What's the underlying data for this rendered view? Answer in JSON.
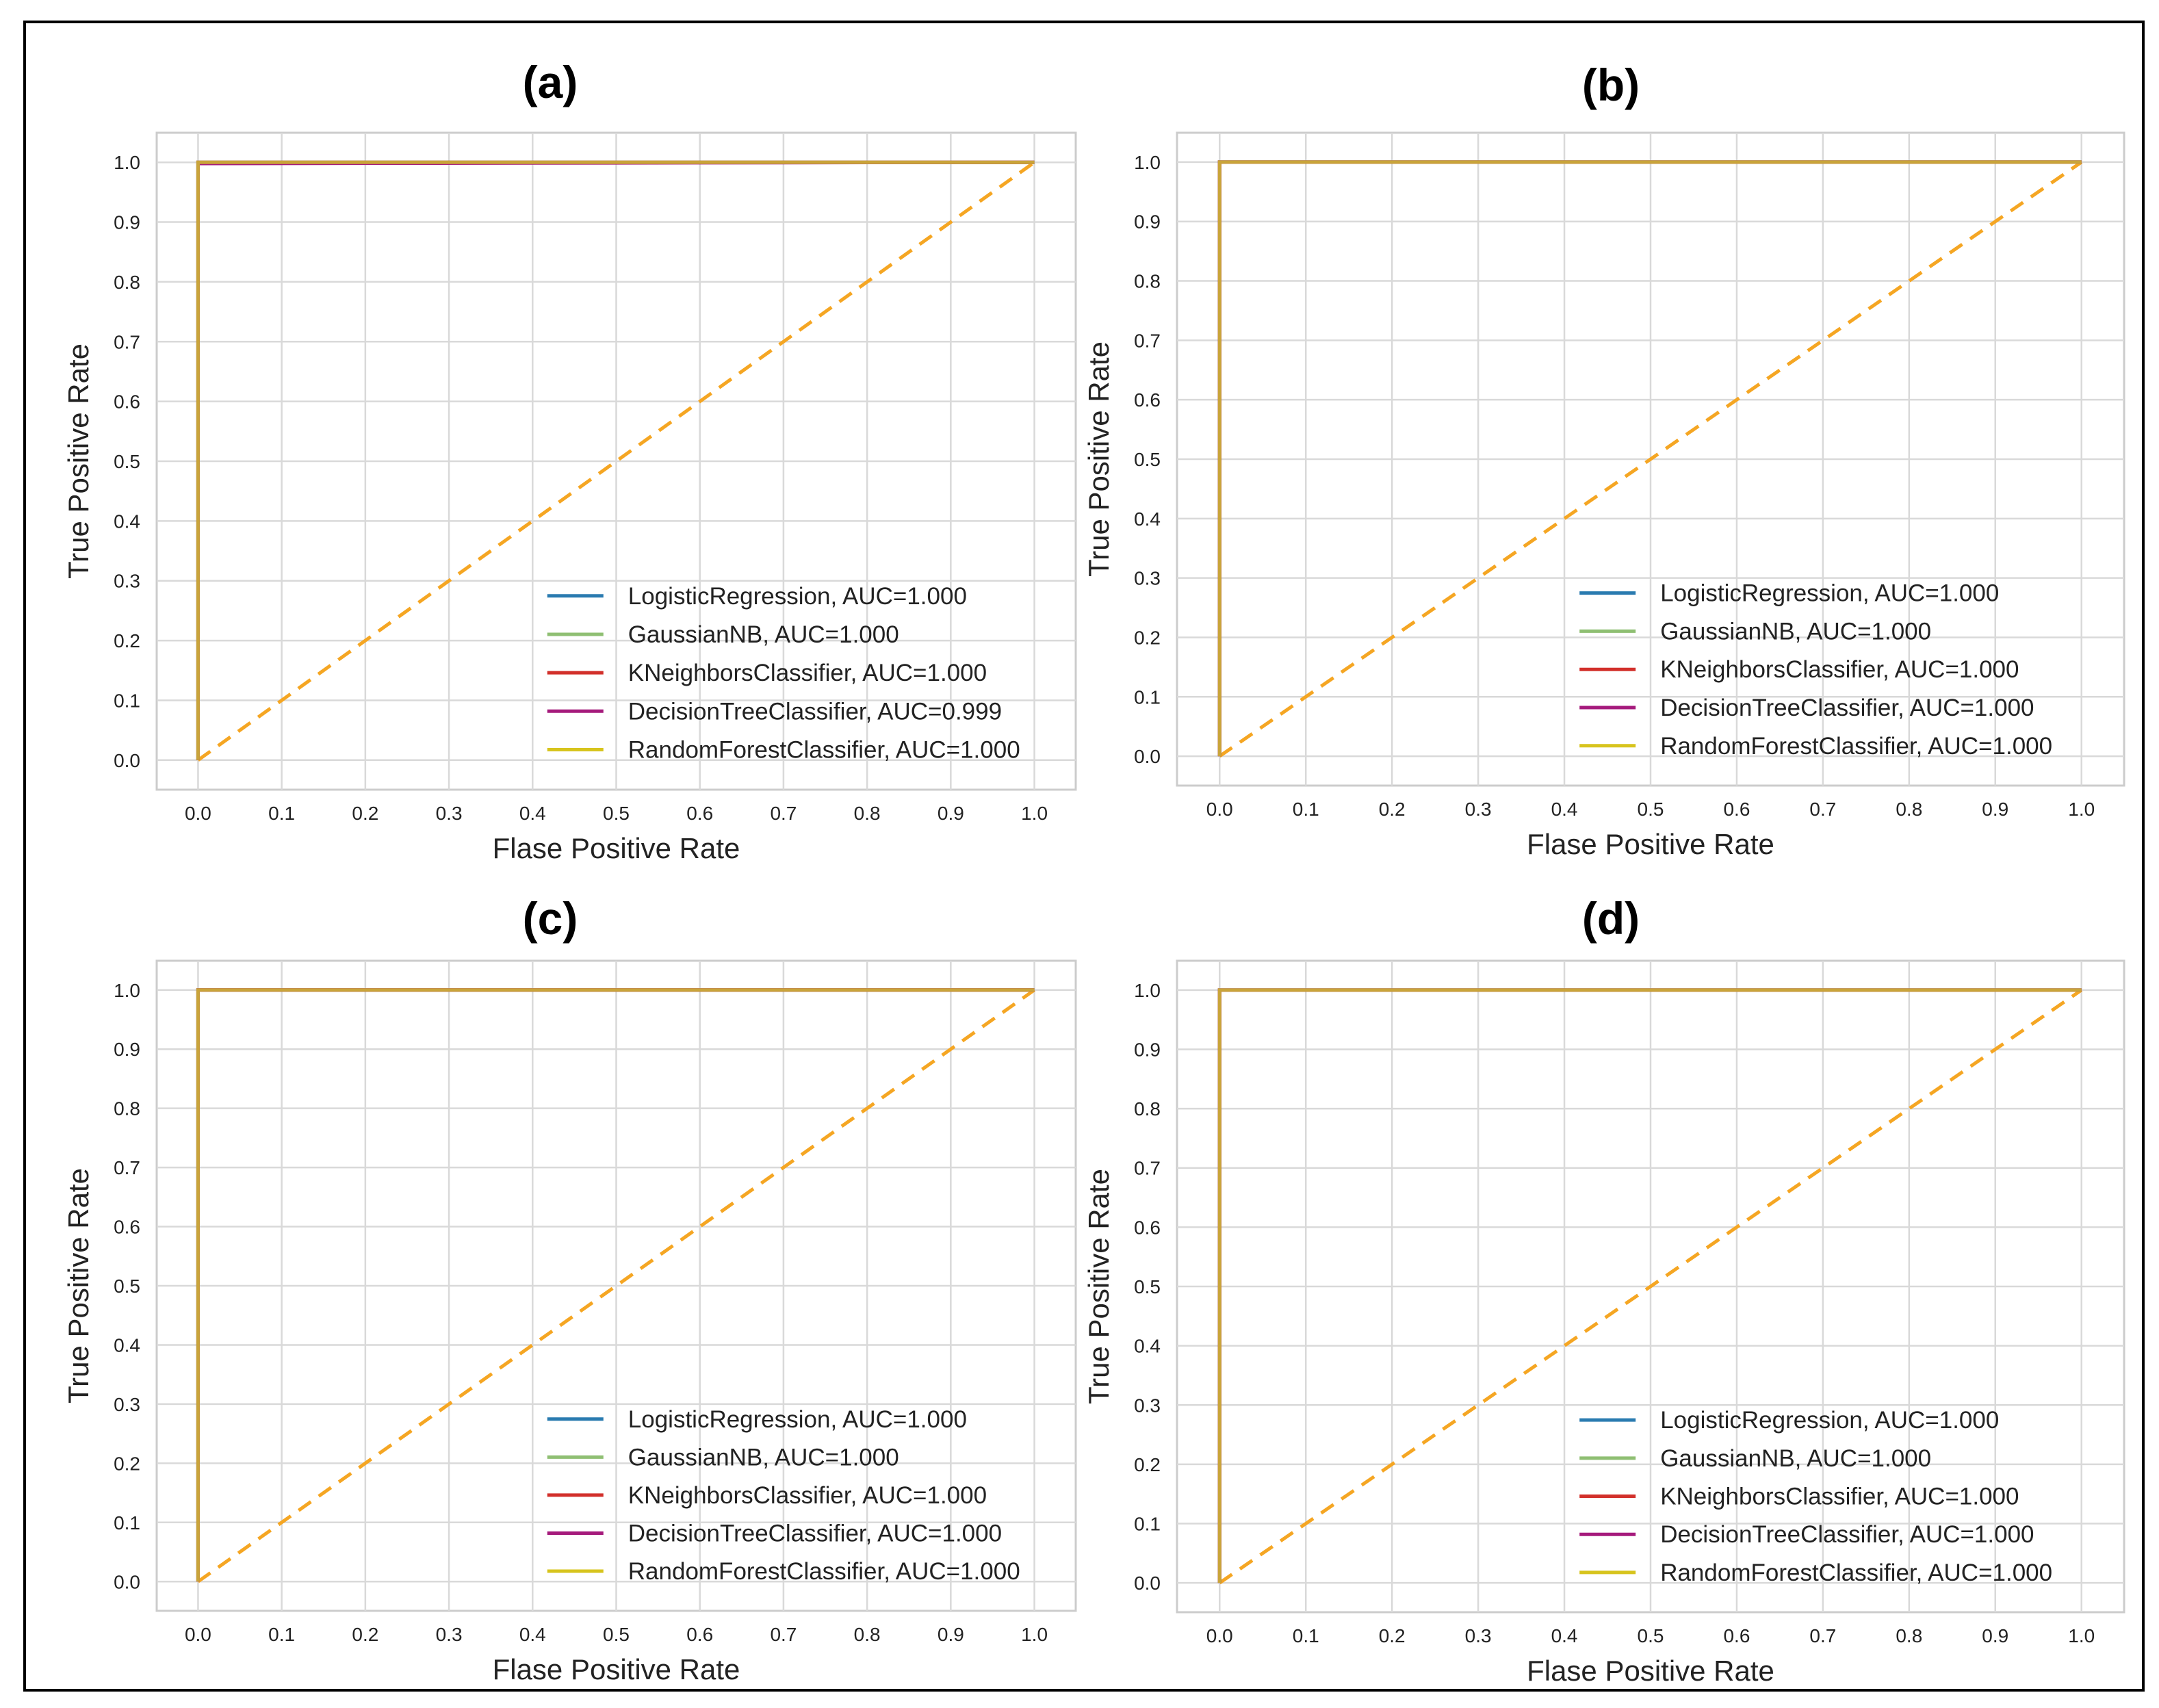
{
  "chart_data": [
    {
      "type": "line",
      "panel_label": "(a)",
      "title": "",
      "xlabel": "Flase Positive Rate",
      "ylabel": "True Positive Rate",
      "xlim": [
        0.0,
        1.0
      ],
      "ylim": [
        0.0,
        1.0
      ],
      "xticks": [
        "0.0",
        "0.1",
        "0.2",
        "0.3",
        "0.4",
        "0.5",
        "0.6",
        "0.7",
        "0.8",
        "0.9",
        "1.0"
      ],
      "yticks": [
        "0.0",
        "0.1",
        "0.2",
        "0.3",
        "0.4",
        "0.5",
        "0.6",
        "0.7",
        "0.8",
        "0.9",
        "1.0"
      ],
      "grid": true,
      "legend_position": "lower-right",
      "series": [
        {
          "name": "LogisticRegression, AUC=1.000",
          "color": "#2a7bb0",
          "x": [
            0,
            0,
            1
          ],
          "y": [
            0,
            1,
            1
          ]
        },
        {
          "name": "GaussianNB, AUC=1.000",
          "color": "#8fbf73",
          "x": [
            0,
            0,
            1
          ],
          "y": [
            0,
            1,
            1
          ]
        },
        {
          "name": "KNeighborsClassifier, AUC=1.000",
          "color": "#d2302b",
          "x": [
            0,
            0,
            1
          ],
          "y": [
            0,
            1,
            1
          ]
        },
        {
          "name": "DecisionTreeClassifier, AUC=0.999",
          "color": "#a51a7c",
          "x": [
            0,
            0,
            1
          ],
          "y": [
            0,
            0.998,
            1
          ]
        },
        {
          "name": "RandomForestClassifier, AUC=1.000",
          "color": "#d7c41d",
          "x": [
            0,
            0,
            1
          ],
          "y": [
            0,
            1,
            1
          ]
        }
      ],
      "top_curve_color": "#c9a43a",
      "reference_line": {
        "x": [
          0,
          1
        ],
        "y": [
          0,
          1
        ],
        "style": "dashed",
        "color": "#f5a623"
      }
    },
    {
      "type": "line",
      "panel_label": "(b)",
      "title": "",
      "xlabel": "Flase Positive Rate",
      "ylabel": "True Positive Rate",
      "xlim": [
        0.0,
        1.0
      ],
      "ylim": [
        0.0,
        1.0
      ],
      "xticks": [
        "0.0",
        "0.1",
        "0.2",
        "0.3",
        "0.4",
        "0.5",
        "0.6",
        "0.7",
        "0.8",
        "0.9",
        "1.0"
      ],
      "yticks": [
        "0.0",
        "0.1",
        "0.2",
        "0.3",
        "0.4",
        "0.5",
        "0.6",
        "0.7",
        "0.8",
        "0.9",
        "1.0"
      ],
      "grid": true,
      "legend_position": "lower-right",
      "series": [
        {
          "name": "LogisticRegression, AUC=1.000",
          "color": "#2a7bb0",
          "x": [
            0,
            0,
            1
          ],
          "y": [
            0,
            1,
            1
          ]
        },
        {
          "name": "GaussianNB, AUC=1.000",
          "color": "#8fbf73",
          "x": [
            0,
            0,
            1
          ],
          "y": [
            0,
            1,
            1
          ]
        },
        {
          "name": "KNeighborsClassifier, AUC=1.000",
          "color": "#d2302b",
          "x": [
            0,
            0,
            1
          ],
          "y": [
            0,
            1,
            1
          ]
        },
        {
          "name": "DecisionTreeClassifier, AUC=1.000",
          "color": "#a51a7c",
          "x": [
            0,
            0,
            1
          ],
          "y": [
            0,
            1,
            1
          ]
        },
        {
          "name": "RandomForestClassifier, AUC=1.000",
          "color": "#d7c41d",
          "x": [
            0,
            0,
            1
          ],
          "y": [
            0,
            1,
            1
          ]
        }
      ],
      "top_curve_color": "#c9a43a",
      "reference_line": {
        "x": [
          0,
          1
        ],
        "y": [
          0,
          1
        ],
        "style": "dashed",
        "color": "#f5a623"
      }
    },
    {
      "type": "line",
      "panel_label": "(c)",
      "title": "",
      "xlabel": "Flase Positive Rate",
      "ylabel": "True Positive Rate",
      "xlim": [
        0.0,
        1.0
      ],
      "ylim": [
        0.0,
        1.0
      ],
      "xticks": [
        "0.0",
        "0.1",
        "0.2",
        "0.3",
        "0.4",
        "0.5",
        "0.6",
        "0.7",
        "0.8",
        "0.9",
        "1.0"
      ],
      "yticks": [
        "0.0",
        "0.1",
        "0.2",
        "0.3",
        "0.4",
        "0.5",
        "0.6",
        "0.7",
        "0.8",
        "0.9",
        "1.0"
      ],
      "grid": true,
      "legend_position": "lower-right",
      "series": [
        {
          "name": "LogisticRegression, AUC=1.000",
          "color": "#2a7bb0",
          "x": [
            0,
            0,
            1
          ],
          "y": [
            0,
            1,
            1
          ]
        },
        {
          "name": "GaussianNB, AUC=1.000",
          "color": "#8fbf73",
          "x": [
            0,
            0,
            1
          ],
          "y": [
            0,
            1,
            1
          ]
        },
        {
          "name": "KNeighborsClassifier, AUC=1.000",
          "color": "#d2302b",
          "x": [
            0,
            0,
            1
          ],
          "y": [
            0,
            1,
            1
          ]
        },
        {
          "name": "DecisionTreeClassifier, AUC=1.000",
          "color": "#a51a7c",
          "x": [
            0,
            0,
            1
          ],
          "y": [
            0,
            1,
            1
          ]
        },
        {
          "name": "RandomForestClassifier, AUC=1.000",
          "color": "#d7c41d",
          "x": [
            0,
            0,
            1
          ],
          "y": [
            0,
            1,
            1
          ]
        }
      ],
      "top_curve_color": "#c9a43a",
      "reference_line": {
        "x": [
          0,
          1
        ],
        "y": [
          0,
          1
        ],
        "style": "dashed",
        "color": "#f5a623"
      }
    },
    {
      "type": "line",
      "panel_label": "(d)",
      "title": "",
      "xlabel": "Flase Positive Rate",
      "ylabel": "True Positive Rate",
      "xlim": [
        0.0,
        1.0
      ],
      "ylim": [
        0.0,
        1.0
      ],
      "xticks": [
        "0.0",
        "0.1",
        "0.2",
        "0.3",
        "0.4",
        "0.5",
        "0.6",
        "0.7",
        "0.8",
        "0.9",
        "1.0"
      ],
      "yticks": [
        "0.0",
        "0.1",
        "0.2",
        "0.3",
        "0.4",
        "0.5",
        "0.6",
        "0.7",
        "0.8",
        "0.9",
        "1.0"
      ],
      "grid": true,
      "legend_position": "lower-right",
      "series": [
        {
          "name": "LogisticRegression, AUC=1.000",
          "color": "#2a7bb0",
          "x": [
            0,
            0,
            1
          ],
          "y": [
            0,
            1,
            1
          ]
        },
        {
          "name": "GaussianNB, AUC=1.000",
          "color": "#8fbf73",
          "x": [
            0,
            0,
            1
          ],
          "y": [
            0,
            1,
            1
          ]
        },
        {
          "name": "KNeighborsClassifier, AUC=1.000",
          "color": "#d2302b",
          "x": [
            0,
            0,
            1
          ],
          "y": [
            0,
            1,
            1
          ]
        },
        {
          "name": "DecisionTreeClassifier, AUC=1.000",
          "color": "#a51a7c",
          "x": [
            0,
            0,
            1
          ],
          "y": [
            0,
            1,
            1
          ]
        },
        {
          "name": "RandomForestClassifier, AUC=1.000",
          "color": "#d7c41d",
          "x": [
            0,
            0,
            1
          ],
          "y": [
            0,
            1,
            1
          ]
        }
      ],
      "top_curve_color": "#c9a43a",
      "reference_line": {
        "x": [
          0,
          1
        ],
        "y": [
          0,
          1
        ],
        "style": "dashed",
        "color": "#f5a623"
      }
    }
  ]
}
